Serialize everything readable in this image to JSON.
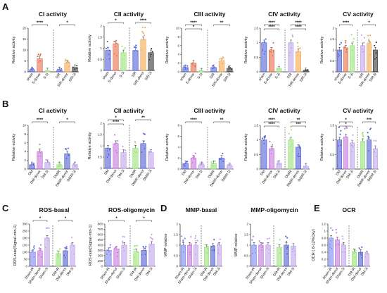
{
  "figure": {
    "letters": [
      "A",
      "B",
      "C",
      "D",
      "E"
    ]
  },
  "colors": {
    "sham": "#3f51d6",
    "sham2": "#6f7bf2",
    "ischemia": "#e0603a",
    "ischemia2": "#ef8a64",
    "green": "#8fe06a",
    "orange": "#f0a040",
    "dark": "#222222",
    "purple": "#b89ae8",
    "violet": "#c06ad6",
    "blue2": "#3e4fc8"
  },
  "chart_data": [
    {
      "id": "A1",
      "type": "bar",
      "title": "CI activity",
      "ylabel": "Relative activity",
      "ylim": [
        0,
        20
      ],
      "yticks": [
        0,
        5,
        10,
        15,
        20
      ],
      "categories": [
        "sham",
        "S-donor",
        "S-3i",
        "SIR",
        "SIR-donor",
        "SIR-3i"
      ],
      "values": [
        1,
        6,
        0.5,
        1,
        4,
        2
      ],
      "colors": [
        "#3f51d6",
        "#e0603a",
        "#8fe06a",
        "#3f51d6",
        "#f0a040",
        "#222222"
      ],
      "sig": [
        "****",
        "*"
      ]
    },
    {
      "id": "A2",
      "type": "bar",
      "title": "CII activity",
      "ylabel": "Relative activity",
      "ylim": [
        0,
        2.0
      ],
      "yticks": [
        0,
        0.5,
        1.0,
        1.5,
        2.0
      ],
      "categories": [
        "sham",
        "S-donor",
        "S-3i",
        "SIR",
        "SIR-donor",
        "SIR-3i"
      ],
      "values": [
        0.9,
        1.2,
        0.8,
        0.9,
        1.4,
        0.8
      ],
      "colors": [
        "#3f51d6",
        "#e0603a",
        "#8fe06a",
        "#3f51d6",
        "#f0a040",
        "#222222"
      ],
      "sig": [
        "*",
        "****"
      ]
    },
    {
      "id": "A3",
      "type": "bar",
      "title": "CIII activity",
      "ylabel": "Relative activity",
      "ylim": [
        0,
        10
      ],
      "yticks": [
        0,
        2,
        4,
        6,
        8,
        10
      ],
      "categories": [
        "sham",
        "S-donor",
        "S-3i",
        "SIR",
        "SIR-donor",
        "SIR-3i"
      ],
      "values": [
        1,
        2,
        0.2,
        1,
        2.5,
        0.8
      ],
      "colors": [
        "#3f51d6",
        "#e0603a",
        "#8fe06a",
        "#3f51d6",
        "#f0a040",
        "#222222"
      ],
      "sig": [
        "****",
        "**",
        "*"
      ]
    },
    {
      "id": "A4",
      "type": "bar",
      "title": "CIV activity",
      "ylabel": "Relative activity",
      "ylim": [
        0,
        1.5
      ],
      "yticks": [
        0,
        0.5,
        1.0,
        1.5
      ],
      "categories": [
        "sham",
        "S-donor",
        "S-3i",
        "SIR",
        "SIR-donor",
        "SIR-3i"
      ],
      "values": [
        1.0,
        0.75,
        0.1,
        1.0,
        0.7,
        0.05
      ],
      "colors": [
        "#3f51d6",
        "#e0603a",
        "#8fe06a",
        "#b89ae8",
        "#f0a040",
        "#222222"
      ],
      "sig": [
        "****",
        "****",
        "****",
        "****"
      ]
    },
    {
      "id": "A5",
      "type": "bar",
      "title": "CV activity",
      "ylabel": "Relative activity",
      "ylim": [
        0,
        2.0
      ],
      "yticks": [
        0,
        0.5,
        1.0,
        1.5,
        2.0
      ],
      "categories": [
        "sham",
        "S-donor",
        "S-3i",
        "SIR",
        "SIR-donor",
        "SIR-3i"
      ],
      "values": [
        1.0,
        1.1,
        1.2,
        1.2,
        1.3,
        1.0
      ],
      "colors": [
        "#3f51d6",
        "#e0603a",
        "#8fe06a",
        "#b89ae8",
        "#f0a040",
        "#222222"
      ],
      "sig": [
        "****",
        "*"
      ]
    },
    {
      "id": "B1",
      "type": "bar",
      "title": "CI activity",
      "ylabel": "Relative activity",
      "ylim": [
        0,
        10
      ],
      "yticks": [
        0,
        2,
        4,
        6,
        8,
        10
      ],
      "categories": [
        "DM",
        "DM-donor",
        "DM-3i",
        "DMIR",
        "DMIR-donor",
        "DMIR-3i"
      ],
      "values": [
        1,
        4,
        1.5,
        1,
        3.5,
        1
      ],
      "colors": [
        "#3f51d6",
        "#c06ad6",
        "#b89ae8",
        "#8fe06a",
        "#3e4fc8",
        "#b89ae8"
      ],
      "sig": [
        "****",
        "*"
      ]
    },
    {
      "id": "B2",
      "type": "bar",
      "title": "CII activity",
      "ylabel": "Relative activity",
      "ylim": [
        0,
        2.0
      ],
      "yticks": [
        0,
        0.5,
        1.0,
        1.5,
        2.0
      ],
      "categories": [
        "DM",
        "DM-donor",
        "DM-3i",
        "DMIR",
        "DMIR-donor",
        "DMIR-3i"
      ],
      "values": [
        0.9,
        1.1,
        0.7,
        0.9,
        1.1,
        0.7
      ],
      "colors": [
        "#3f51d6",
        "#c06ad6",
        "#b89ae8",
        "#8fe06a",
        "#3e4fc8",
        "#b89ae8"
      ],
      "sig": [
        "*",
        "**",
        "****"
      ]
    },
    {
      "id": "B3",
      "type": "bar",
      "title": "CIII activity",
      "ylabel": "Relative activity",
      "ylim": [
        0,
        8
      ],
      "yticks": [
        0,
        2,
        4,
        6,
        8
      ],
      "categories": [
        "DM",
        "DM-donor",
        "DM-3i",
        "DMIR",
        "DMIR-donor",
        "DMIR-3i"
      ],
      "values": [
        1,
        2,
        0.8,
        1,
        2,
        0.6
      ],
      "colors": [
        "#3f51d6",
        "#c06ad6",
        "#b89ae8",
        "#8fe06a",
        "#3e4fc8",
        "#b89ae8"
      ],
      "sig": [
        "****",
        "**"
      ]
    },
    {
      "id": "B4",
      "type": "bar",
      "title": "CIV activity",
      "ylabel": "Relative activity",
      "ylim": [
        0,
        1.5
      ],
      "yticks": [
        0,
        0.5,
        1.0,
        1.5
      ],
      "categories": [
        "DM",
        "DM-donor",
        "DM-3i",
        "DMIR",
        "DMIR-donor",
        "DMIR-3i"
      ],
      "values": [
        1.0,
        0.7,
        0.2,
        1.0,
        0.75,
        0.1
      ],
      "colors": [
        "#3f51d6",
        "#c06ad6",
        "#b89ae8",
        "#8fe06a",
        "#3e4fc8",
        "#b89ae8"
      ],
      "sig": [
        "****",
        "**",
        "****",
        "***"
      ]
    },
    {
      "id": "B5",
      "type": "bar",
      "title": "CV activity",
      "ylabel": "Relative activity",
      "ylim": [
        0,
        1.5
      ],
      "yticks": [
        0,
        0.5,
        1.0,
        1.5
      ],
      "categories": [
        "DM",
        "DM-donor",
        "DM-3i",
        "DMIR",
        "DMIR-donor",
        "DMIR-3i"
      ],
      "values": [
        1.0,
        1.1,
        0.9,
        0.95,
        1.0,
        0.7
      ],
      "colors": [
        "#3f51d6",
        "#c06ad6",
        "#b89ae8",
        "#8fe06a",
        "#3e4fc8",
        "#b89ae8"
      ],
      "sig": [
        "*",
        "***",
        "*"
      ]
    },
    {
      "id": "C1",
      "type": "bar",
      "title": "ROS-basal",
      "ylabel": "ROS-rate(Signal·min-1)",
      "ylim": [
        0,
        300
      ],
      "yticks": [
        0,
        50,
        100,
        150,
        200,
        250,
        300
      ],
      "categories": [
        "Sham-iR",
        "Sham-donor",
        "Sham-3i",
        "DM-iR",
        "DM-donor",
        "DM-3i"
      ],
      "values": [
        100,
        110,
        200,
        90,
        110,
        150
      ],
      "colors": [
        "#6f7bf2",
        "#c06ad6",
        "#b89ae8",
        "#8fe06a",
        "#3e4fc8",
        "#b89ae8"
      ],
      "sig": [
        "*",
        "*"
      ]
    },
    {
      "id": "C2",
      "type": "bar",
      "title": "ROS-oligomycin",
      "ylabel": "ROS-rate(Signal·min-1)",
      "ylim": [
        0,
        800
      ],
      "yticks": [
        0,
        100,
        200,
        300,
        400,
        500,
        600,
        700,
        800
      ],
      "categories": [
        "Sham-iR",
        "Sham-donor",
        "Sham-3i",
        "DM-iR",
        "DM-donor",
        "DM-3i"
      ],
      "values": [
        300,
        330,
        400,
        280,
        300,
        420
      ],
      "colors": [
        "#6f7bf2",
        "#c06ad6",
        "#b89ae8",
        "#8fe06a",
        "#3e4fc8",
        "#b89ae8"
      ],
      "sig": [
        "*",
        "*"
      ]
    },
    {
      "id": "D1",
      "type": "bar",
      "title": "MMP-basal",
      "ylabel": "MMP-relative",
      "ylim": [
        0,
        2.0
      ],
      "yticks": [
        0,
        0.5,
        1.0,
        1.5,
        2.0
      ],
      "categories": [
        "Sham-iR",
        "Sham-donor",
        "Sham-3i",
        "DM-iR",
        "DM-donor",
        "DM-3i"
      ],
      "values": [
        1.0,
        1.0,
        1.0,
        0.9,
        0.95,
        1.0
      ],
      "colors": [
        "#6f7bf2",
        "#c06ad6",
        "#b89ae8",
        "#8fe06a",
        "#3e4fc8",
        "#b89ae8"
      ],
      "sig": []
    },
    {
      "id": "D2",
      "type": "bar",
      "title": "MMP-oligomycin",
      "ylabel": "MMP-relative",
      "ylim": [
        0,
        2.0
      ],
      "yticks": [
        0,
        0.5,
        1.0,
        1.5,
        2.0
      ],
      "categories": [
        "Sham-iR",
        "Sham-donor",
        "Sham-3i",
        "DM-iR",
        "DM-donor",
        "DM-3i"
      ],
      "values": [
        1.0,
        1.0,
        1.0,
        0.9,
        1.0,
        0.95
      ],
      "colors": [
        "#6f7bf2",
        "#c06ad6",
        "#b89ae8",
        "#8fe06a",
        "#3e4fc8",
        "#b89ae8"
      ],
      "sig": []
    },
    {
      "id": "E1",
      "type": "bar",
      "title": "OCR",
      "ylabel": "OCR ( 8-12%Oxy)",
      "ylim": [
        0,
        1.2
      ],
      "yticks": [
        0,
        0.2,
        0.4,
        0.6,
        0.8,
        1.0,
        1.2
      ],
      "categories": [
        "Sham-iR",
        "Sham-donor",
        "Sham-3i",
        "DM-iR",
        "DM-donor",
        "DM-3i"
      ],
      "values": [
        0.8,
        0.75,
        0.6,
        0.4,
        0.4,
        0.35
      ],
      "colors": [
        "#6f7bf2",
        "#c06ad6",
        "#b89ae8",
        "#8fe06a",
        "#3e4fc8",
        "#b89ae8"
      ],
      "sig": []
    }
  ]
}
